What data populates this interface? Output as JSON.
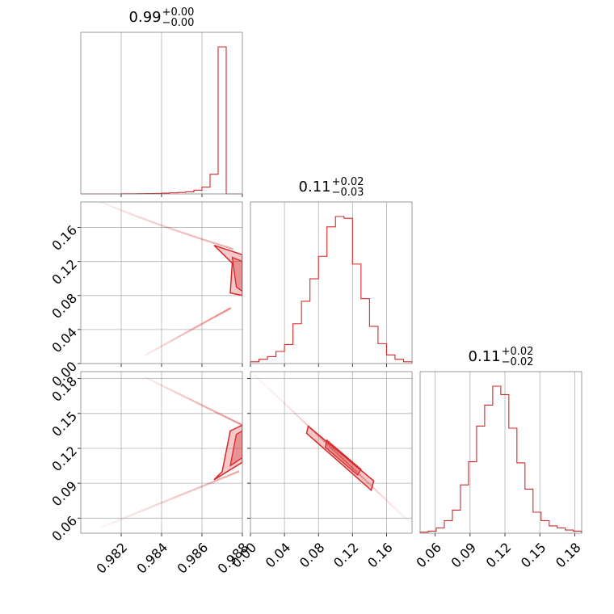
{
  "chart_data": {
    "type": "corner",
    "color": "#d62728",
    "titles": [
      {
        "median": "0.99",
        "plus": "+0.00",
        "minus": "−0.00"
      },
      {
        "median": "0.11",
        "plus": "+0.02",
        "minus": "−0.03"
      },
      {
        "median": "0.11",
        "plus": "+0.02",
        "minus": "−0.02"
      }
    ],
    "params": [
      {
        "range": [
          0.98,
          0.988
        ],
        "ticks": [
          0.982,
          0.984,
          0.986,
          0.988
        ],
        "tick_labels": [
          "0.982",
          "0.984",
          "0.986",
          "0.988"
        ]
      },
      {
        "range": [
          0.0,
          0.19
        ],
        "ticks": [
          0.0,
          0.04,
          0.08,
          0.12,
          0.16
        ],
        "tick_labels": [
          "0.00",
          "0.04",
          "0.08",
          "0.12",
          "0.16"
        ]
      },
      {
        "range": [
          0.047,
          0.186
        ],
        "ticks": [
          0.06,
          0.09,
          0.12,
          0.15,
          0.18
        ],
        "tick_labels": [
          "0.06",
          "0.09",
          "0.12",
          "0.15",
          "0.18"
        ]
      }
    ],
    "hist1d": [
      {
        "param": 0,
        "bin_start": 0.98,
        "bin_width": 0.0004,
        "counts": [
          0,
          0,
          0,
          0,
          0,
          1,
          1,
          2,
          3,
          4,
          6,
          9,
          12,
          17,
          30,
          55,
          160,
          1200,
          0,
          0
        ]
      },
      {
        "param": 1,
        "bin_start": 0.0,
        "bin_width": 0.01,
        "counts": [
          2,
          5,
          8,
          14,
          22,
          46,
          72,
          98,
          124,
          158,
          170,
          168,
          115,
          75,
          43,
          23,
          10,
          5,
          2
        ]
      },
      {
        "param": 2,
        "bin_start": 0.047,
        "bin_width": 0.00694,
        "counts": [
          1,
          2,
          5,
          12,
          22,
          46,
          68,
          102,
          122,
          140,
          132,
          100,
          67,
          42,
          20,
          12,
          7,
          5,
          3,
          2
        ]
      }
    ],
    "grid": true,
    "grid_color": "#b0b0b0"
  }
}
